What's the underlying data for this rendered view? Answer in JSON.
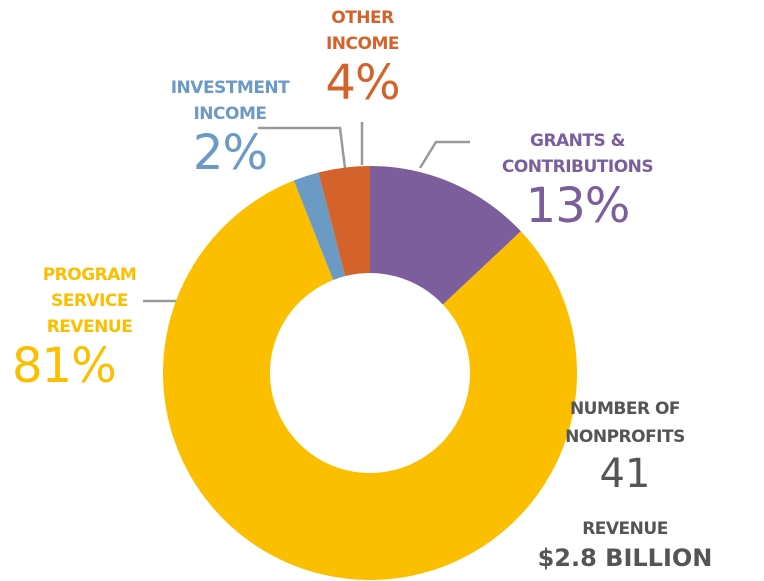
{
  "chart_data": {
    "type": "donut",
    "categories": [
      "GRANTS & CONTRIBUTIONS",
      "PROGRAM SERVICE REVENUE",
      "INVESTMENT INCOME",
      "OTHER INCOME"
    ],
    "values": [
      13,
      81,
      2,
      4
    ],
    "value_labels": [
      "13%",
      "81%",
      "2%",
      "4%"
    ],
    "colors": [
      "#7b5e9b",
      "#fbbf00",
      "#6b9ac4",
      "#d4622b"
    ],
    "stats": [
      {
        "label": "NUMBER OF NONPROFITS",
        "value": 41
      },
      {
        "label": "REVENUE",
        "value": "$2.8 BILLION"
      }
    ]
  }
}
